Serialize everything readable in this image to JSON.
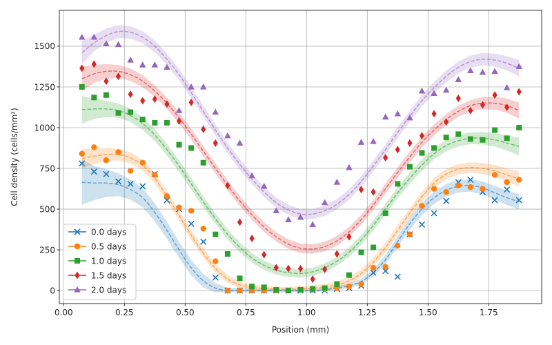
{
  "chart_data": {
    "type": "scatter",
    "title": "",
    "xlabel": "Position (mm)",
    "ylabel": "Cell density (cells/mm²)",
    "xlim": [
      -0.018,
      1.968
    ],
    "ylim": [
      -80,
      1720
    ],
    "xticks": [
      0.0,
      0.25,
      0.5,
      0.75,
      1.0,
      1.25,
      1.5,
      1.75
    ],
    "xtick_labels": [
      "0.00",
      "0.25",
      "0.50",
      "0.75",
      "1.00",
      "1.25",
      "1.50",
      "1.75"
    ],
    "yticks": [
      0,
      250,
      500,
      750,
      1000,
      1250,
      1500
    ],
    "ytick_labels": [
      "0",
      "250",
      "500",
      "750",
      "1000",
      "1250",
      "1500"
    ],
    "grid": true,
    "legend_position": "lower-left",
    "x": [
      0.075,
      0.125,
      0.175,
      0.225,
      0.275,
      0.325,
      0.375,
      0.425,
      0.475,
      0.525,
      0.575,
      0.625,
      0.675,
      0.725,
      0.775,
      0.825,
      0.875,
      0.925,
      0.975,
      1.025,
      1.075,
      1.125,
      1.175,
      1.225,
      1.275,
      1.325,
      1.375,
      1.425,
      1.475,
      1.525,
      1.575,
      1.625,
      1.675,
      1.725,
      1.775,
      1.825,
      1.875
    ],
    "series": [
      {
        "name": "0.0 days",
        "color": "#1f77b4",
        "marker": "x",
        "values": [
          780,
          730,
          715,
          670,
          655,
          640,
          715,
          555,
          500,
          410,
          300,
          80,
          0,
          0,
          0,
          0,
          0,
          0,
          0,
          0,
          0,
          10,
          15,
          30,
          110,
          120,
          85,
          345,
          405,
          475,
          550,
          665,
          680,
          605,
          555,
          620,
          555
        ],
        "fit": [
          [
            0.075,
            665
          ],
          [
            0.125,
            660
          ],
          [
            0.175,
            660
          ],
          [
            0.225,
            650
          ],
          [
            0.275,
            620
          ],
          [
            0.325,
            570
          ],
          [
            0.375,
            480
          ],
          [
            0.425,
            370
          ],
          [
            0.475,
            250
          ],
          [
            0.525,
            140
          ],
          [
            0.575,
            60
          ],
          [
            0.625,
            15
          ],
          [
            0.675,
            0
          ],
          [
            0.725,
            0
          ],
          [
            0.775,
            0
          ],
          [
            0.825,
            0
          ],
          [
            0.875,
            0
          ],
          [
            0.925,
            0
          ],
          [
            0.975,
            0
          ],
          [
            1.025,
            0
          ],
          [
            1.075,
            5
          ],
          [
            1.125,
            15
          ],
          [
            1.175,
            30
          ],
          [
            1.225,
            55
          ],
          [
            1.275,
            110
          ],
          [
            1.325,
            190
          ],
          [
            1.375,
            300
          ],
          [
            1.425,
            410
          ],
          [
            1.475,
            500
          ],
          [
            1.525,
            570
          ],
          [
            1.575,
            615
          ],
          [
            1.625,
            640
          ],
          [
            1.675,
            645
          ],
          [
            1.725,
            630
          ],
          [
            1.775,
            600
          ],
          [
            1.825,
            570
          ],
          [
            1.875,
            545
          ]
        ],
        "band": [
          140,
          105,
          85,
          70,
          62,
          58,
          55,
          52,
          50,
          47,
          42,
          30,
          18,
          12,
          10,
          10,
          10,
          10,
          10,
          10,
          10,
          12,
          15,
          18,
          22,
          28,
          32,
          36,
          38,
          38,
          38,
          38,
          38,
          40,
          42,
          45,
          48
        ]
      },
      {
        "name": "0.5 days",
        "color": "#ff7f0e",
        "marker": "o",
        "values": [
          840,
          880,
          800,
          850,
          735,
          785,
          710,
          580,
          510,
          490,
          380,
          180,
          0,
          0,
          0,
          0,
          0,
          0,
          5,
          5,
          10,
          15,
          25,
          40,
          140,
          145,
          275,
          345,
          520,
          625,
          605,
          645,
          635,
          625,
          710,
          665,
          680
        ],
        "fit": [
          [
            0.075,
            810
          ],
          [
            0.125,
            825
          ],
          [
            0.175,
            835
          ],
          [
            0.225,
            835
          ],
          [
            0.275,
            815
          ],
          [
            0.325,
            770
          ],
          [
            0.375,
            690
          ],
          [
            0.425,
            580
          ],
          [
            0.475,
            460
          ],
          [
            0.525,
            340
          ],
          [
            0.575,
            230
          ],
          [
            0.625,
            135
          ],
          [
            0.675,
            70
          ],
          [
            0.725,
            35
          ],
          [
            0.775,
            20
          ],
          [
            0.825,
            12
          ],
          [
            0.875,
            8
          ],
          [
            0.925,
            8
          ],
          [
            0.975,
            10
          ],
          [
            1.025,
            15
          ],
          [
            1.075,
            22
          ],
          [
            1.125,
            35
          ],
          [
            1.175,
            60
          ],
          [
            1.225,
            105
          ],
          [
            1.275,
            175
          ],
          [
            1.325,
            265
          ],
          [
            1.375,
            370
          ],
          [
            1.425,
            475
          ],
          [
            1.475,
            575
          ],
          [
            1.525,
            660
          ],
          [
            1.575,
            715
          ],
          [
            1.625,
            745
          ],
          [
            1.675,
            755
          ],
          [
            1.725,
            750
          ],
          [
            1.775,
            735
          ],
          [
            1.825,
            710
          ],
          [
            1.875,
            685
          ]
        ],
        "band": [
          60,
          48,
          40,
          36,
          34,
          33,
          32,
          32,
          31,
          30,
          29,
          27,
          24,
          20,
          17,
          16,
          15,
          15,
          16,
          17,
          18,
          20,
          22,
          24,
          26,
          28,
          30,
          31,
          32,
          32,
          32,
          32,
          32,
          34,
          36,
          40,
          45
        ]
      },
      {
        "name": "1.0 days",
        "color": "#2ca02c",
        "marker": "s",
        "values": [
          1250,
          1185,
          1200,
          1090,
          1095,
          1050,
          1030,
          1030,
          895,
          875,
          785,
          345,
          225,
          75,
          25,
          20,
          5,
          0,
          5,
          10,
          15,
          40,
          95,
          235,
          265,
          475,
          655,
          760,
          845,
          875,
          940,
          960,
          930,
          925,
          985,
          935,
          1000
        ],
        "fit": [
          [
            0.075,
            1110
          ],
          [
            0.125,
            1115
          ],
          [
            0.175,
            1115
          ],
          [
            0.225,
            1105
          ],
          [
            0.275,
            1075
          ],
          [
            0.325,
            1025
          ],
          [
            0.375,
            955
          ],
          [
            0.425,
            865
          ],
          [
            0.475,
            765
          ],
          [
            0.525,
            655
          ],
          [
            0.575,
            545
          ],
          [
            0.625,
            440
          ],
          [
            0.675,
            345
          ],
          [
            0.725,
            265
          ],
          [
            0.775,
            200
          ],
          [
            0.825,
            155
          ],
          [
            0.875,
            125
          ],
          [
            0.925,
            110
          ],
          [
            0.975,
            105
          ],
          [
            1.025,
            115
          ],
          [
            1.075,
            140
          ],
          [
            1.125,
            180
          ],
          [
            1.175,
            235
          ],
          [
            1.225,
            310
          ],
          [
            1.275,
            400
          ],
          [
            1.325,
            500
          ],
          [
            1.375,
            600
          ],
          [
            1.425,
            690
          ],
          [
            1.475,
            770
          ],
          [
            1.525,
            840
          ],
          [
            1.575,
            890
          ],
          [
            1.625,
            920
          ],
          [
            1.675,
            935
          ],
          [
            1.725,
            935
          ],
          [
            1.775,
            925
          ],
          [
            1.825,
            905
          ],
          [
            1.875,
            885
          ]
        ],
        "band": [
          85,
          62,
          50,
          44,
          40,
          38,
          37,
          36,
          35,
          34,
          33,
          32,
          31,
          30,
          29,
          28,
          27,
          26,
          26,
          26,
          27,
          28,
          29,
          30,
          31,
          32,
          33,
          34,
          35,
          35,
          35,
          35,
          36,
          38,
          41,
          46,
          55
        ]
      },
      {
        "name": "1.5 days",
        "color": "#d62728",
        "marker": "d",
        "values": [
          1365,
          1390,
          1285,
          1315,
          1205,
          1165,
          1175,
          1145,
          1040,
          1155,
          990,
          905,
          645,
          420,
          320,
          220,
          140,
          135,
          135,
          70,
          130,
          225,
          330,
          620,
          605,
          815,
          865,
          905,
          950,
          1085,
          1035,
          1180,
          1105,
          1140,
          1200,
          1125,
          1220
        ],
        "fit": [
          [
            0.075,
            1300
          ],
          [
            0.125,
            1330
          ],
          [
            0.175,
            1345
          ],
          [
            0.225,
            1345
          ],
          [
            0.275,
            1325
          ],
          [
            0.325,
            1285
          ],
          [
            0.375,
            1225
          ],
          [
            0.425,
            1150
          ],
          [
            0.475,
            1060
          ],
          [
            0.525,
            960
          ],
          [
            0.575,
            855
          ],
          [
            0.625,
            750
          ],
          [
            0.675,
            645
          ],
          [
            0.725,
            550
          ],
          [
            0.775,
            465
          ],
          [
            0.825,
            390
          ],
          [
            0.875,
            330
          ],
          [
            0.925,
            285
          ],
          [
            0.975,
            260
          ],
          [
            1.025,
            255
          ],
          [
            1.075,
            270
          ],
          [
            1.125,
            305
          ],
          [
            1.175,
            360
          ],
          [
            1.225,
            435
          ],
          [
            1.275,
            525
          ],
          [
            1.325,
            625
          ],
          [
            1.375,
            725
          ],
          [
            1.425,
            820
          ],
          [
            1.475,
            910
          ],
          [
            1.525,
            985
          ],
          [
            1.575,
            1050
          ],
          [
            1.625,
            1100
          ],
          [
            1.675,
            1135
          ],
          [
            1.725,
            1150
          ],
          [
            1.775,
            1150
          ],
          [
            1.825,
            1135
          ],
          [
            1.875,
            1105
          ]
        ],
        "band": [
          75,
          55,
          45,
          40,
          38,
          37,
          36,
          35,
          34,
          33,
          32,
          31,
          31,
          30,
          30,
          30,
          29,
          29,
          29,
          29,
          29,
          30,
          30,
          30,
          31,
          31,
          32,
          33,
          34,
          34,
          34,
          34,
          35,
          37,
          40,
          44,
          50
        ]
      },
      {
        "name": "2.0 days",
        "color": "#9467bd",
        "marker": "^",
        "values": [
          1555,
          1555,
          1515,
          1510,
          1415,
          1385,
          1385,
          1370,
          1105,
          1250,
          1250,
          1095,
          950,
          905,
          705,
          640,
          490,
          435,
          450,
          405,
          540,
          665,
          755,
          910,
          915,
          1065,
          1085,
          1060,
          1225,
          1210,
          1230,
          1295,
          1350,
          1340,
          1345,
          1245,
          1375
        ],
        "fit": [
          [
            0.075,
            1460
          ],
          [
            0.125,
            1520
          ],
          [
            0.175,
            1565
          ],
          [
            0.225,
            1590
          ],
          [
            0.275,
            1585
          ],
          [
            0.325,
            1555
          ],
          [
            0.375,
            1500
          ],
          [
            0.425,
            1420
          ],
          [
            0.475,
            1325
          ],
          [
            0.525,
            1215
          ],
          [
            0.575,
            1100
          ],
          [
            0.625,
            985
          ],
          [
            0.675,
            875
          ],
          [
            0.725,
            775
          ],
          [
            0.775,
            685
          ],
          [
            0.825,
            605
          ],
          [
            0.875,
            540
          ],
          [
            0.925,
            495
          ],
          [
            0.975,
            470
          ],
          [
            1.025,
            470
          ],
          [
            1.075,
            490
          ],
          [
            1.125,
            530
          ],
          [
            1.175,
            590
          ],
          [
            1.225,
            670
          ],
          [
            1.275,
            765
          ],
          [
            1.325,
            865
          ],
          [
            1.375,
            970
          ],
          [
            1.425,
            1070
          ],
          [
            1.475,
            1165
          ],
          [
            1.525,
            1245
          ],
          [
            1.575,
            1315
          ],
          [
            1.625,
            1370
          ],
          [
            1.675,
            1405
          ],
          [
            1.725,
            1420
          ],
          [
            1.775,
            1415
          ],
          [
            1.825,
            1395
          ],
          [
            1.875,
            1365
          ]
        ],
        "band": [
          70,
          52,
          44,
          40,
          38,
          37,
          36,
          35,
          34,
          34,
          33,
          33,
          32,
          32,
          32,
          32,
          31,
          31,
          31,
          31,
          31,
          32,
          32,
          32,
          33,
          33,
          34,
          34,
          35,
          35,
          36,
          36,
          37,
          38,
          40,
          44,
          50
        ]
      }
    ]
  }
}
